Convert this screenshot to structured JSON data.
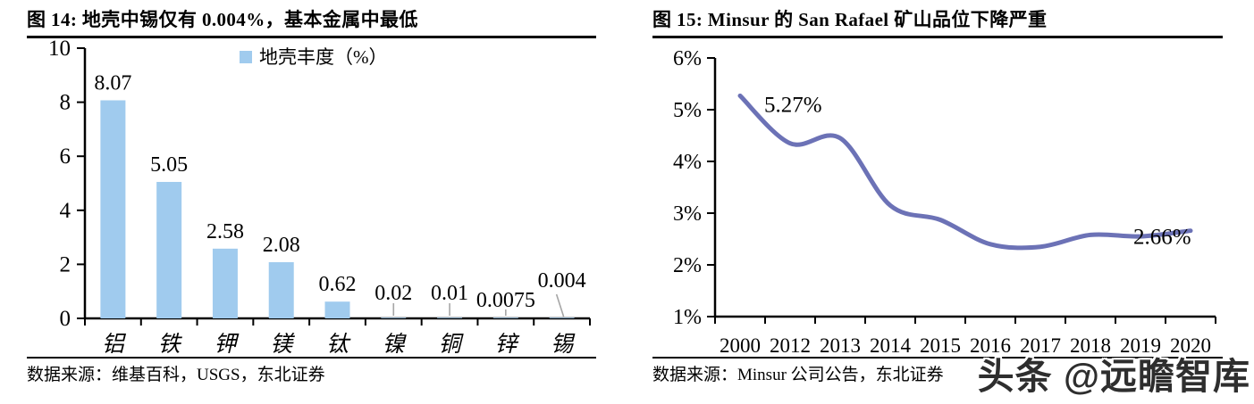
{
  "figures": [
    {
      "title": "图 14:  地壳中锡仅有 0.004%，基本金属中最低",
      "source": "数据来源：维基百科，USGS，东北证券"
    },
    {
      "title": "图 15:  Minsur 的 San Rafael 矿山品位下降严重",
      "source": "数据来源：Minsur 公司公告，东北证券"
    }
  ],
  "watermark": {
    "text": "头条 @远瞻智库"
  },
  "chart_data": [
    {
      "type": "bar",
      "title": "地壳中锡仅有 0.004%，基本金属中最低",
      "legend": [
        "地壳丰度（%）"
      ],
      "legend_position": "top",
      "categories": [
        "铝",
        "铁",
        "钾",
        "镁",
        "钛",
        "镍",
        "铜",
        "锌",
        "锡"
      ],
      "values": [
        8.07,
        5.05,
        2.58,
        2.08,
        0.62,
        0.02,
        0.01,
        0.0075,
        0.004
      ],
      "data_labels": [
        "8.07",
        "5.05",
        "2.58",
        "2.08",
        "0.62",
        "0.02",
        "0.01",
        "0.0075",
        "0.004"
      ],
      "xlabel": "",
      "ylabel": "",
      "ylim": [
        0,
        10
      ],
      "yticks": [
        0,
        2,
        4,
        6,
        8,
        10
      ],
      "grid": false,
      "bar_color": "#A0CBEE",
      "leader_line_color": "#A6A6A6",
      "axis_color": "#000000"
    },
    {
      "type": "line",
      "title": "Minsur 的 San Rafael 矿山品位下降严重",
      "x": [
        "2000",
        "2012",
        "2013",
        "2014",
        "2015",
        "2016",
        "2017",
        "2018",
        "2019",
        "2020"
      ],
      "values": [
        5.27,
        4.35,
        4.45,
        3.15,
        2.87,
        2.4,
        2.35,
        2.58,
        2.55,
        2.66
      ],
      "annotations": [
        {
          "x": "2000",
          "text": "5.27%"
        },
        {
          "x": "2020",
          "text": "2.66%"
        }
      ],
      "xlabel": "",
      "ylabel": "",
      "ylim": [
        1,
        6
      ],
      "ytick_labels": [
        "1%",
        "2%",
        "3%",
        "4%",
        "5%",
        "6%"
      ],
      "grid": false,
      "line_color": "#6C72B6",
      "axis_color": "#000000",
      "smooth": true
    }
  ]
}
